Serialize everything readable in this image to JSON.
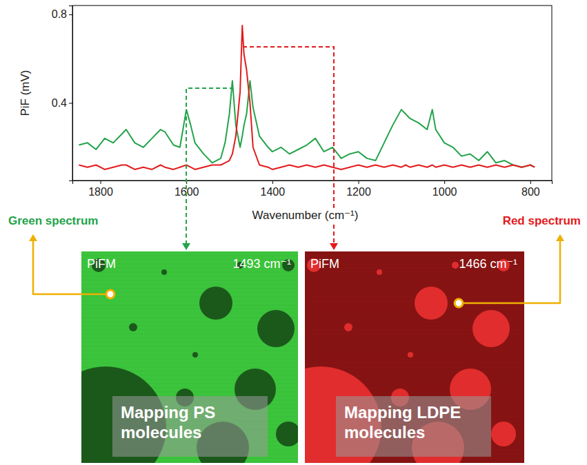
{
  "chart_data": {
    "type": "line",
    "x_label": "Wavenumber (cm⁻¹)",
    "y_label": "PiF (mV)",
    "x": [
      1850,
      1830,
      1810,
      1790,
      1770,
      1750,
      1740,
      1720,
      1700,
      1680,
      1660,
      1650,
      1630,
      1615,
      1600,
      1590,
      1580,
      1560,
      1540,
      1520,
      1510,
      1500,
      1493,
      1485,
      1475,
      1470,
      1466,
      1460,
      1452,
      1445,
      1430,
      1410,
      1400,
      1380,
      1360,
      1340,
      1320,
      1300,
      1280,
      1260,
      1240,
      1220,
      1200,
      1180,
      1160,
      1140,
      1120,
      1100,
      1090,
      1080,
      1060,
      1040,
      1028,
      1020,
      1000,
      980,
      960,
      940,
      920,
      900,
      880,
      860,
      840,
      820,
      800,
      790
    ],
    "xlim": [
      1865,
      750
    ],
    "xticks": [
      1800,
      1600,
      1400,
      1200,
      1000,
      800
    ],
    "ylim": [
      0.05,
      0.84
    ],
    "yticks": [
      0.4,
      0.8
    ],
    "series": [
      {
        "name": "Green spectrum",
        "color": "#22a34a",
        "values": [
          0.21,
          0.22,
          0.19,
          0.24,
          0.22,
          0.26,
          0.28,
          0.22,
          0.2,
          0.24,
          0.28,
          0.27,
          0.21,
          0.2,
          0.37,
          0.3,
          0.22,
          0.17,
          0.13,
          0.15,
          0.22,
          0.35,
          0.5,
          0.3,
          0.2,
          0.25,
          0.3,
          0.35,
          0.5,
          0.38,
          0.25,
          0.2,
          0.18,
          0.2,
          0.17,
          0.19,
          0.21,
          0.24,
          0.18,
          0.2,
          0.15,
          0.17,
          0.18,
          0.15,
          0.14,
          0.22,
          0.3,
          0.37,
          0.35,
          0.33,
          0.31,
          0.28,
          0.37,
          0.28,
          0.22,
          0.2,
          0.16,
          0.17,
          0.14,
          0.18,
          0.13,
          0.14,
          0.12,
          0.11,
          0.12,
          0.11
        ]
      },
      {
        "name": "Red spectrum",
        "color": "#e31a1c",
        "values": [
          0.12,
          0.11,
          0.12,
          0.1,
          0.11,
          0.12,
          0.12,
          0.1,
          0.11,
          0.1,
          0.12,
          0.11,
          0.1,
          0.11,
          0.12,
          0.11,
          0.1,
          0.11,
          0.12,
          0.12,
          0.13,
          0.14,
          0.17,
          0.25,
          0.45,
          0.75,
          0.62,
          0.55,
          0.4,
          0.2,
          0.12,
          0.11,
          0.1,
          0.11,
          0.12,
          0.11,
          0.12,
          0.11,
          0.12,
          0.11,
          0.1,
          0.11,
          0.12,
          0.11,
          0.12,
          0.11,
          0.12,
          0.11,
          0.12,
          0.11,
          0.12,
          0.11,
          0.12,
          0.11,
          0.12,
          0.11,
          0.12,
          0.11,
          0.12,
          0.11,
          0.12,
          0.11,
          0.12,
          0.11,
          0.12,
          0.11
        ]
      }
    ]
  },
  "maps": [
    {
      "instrument": "PiFM",
      "wavenumber": "1493 cm⁻¹",
      "caption": "Mapping PS molecules",
      "color": "#3cc43c"
    },
    {
      "instrument": "PiFM",
      "wavenumber": "1466 cm⁻¹",
      "caption": "Mapping LDPE molecules",
      "color": "#861313"
    }
  ]
}
